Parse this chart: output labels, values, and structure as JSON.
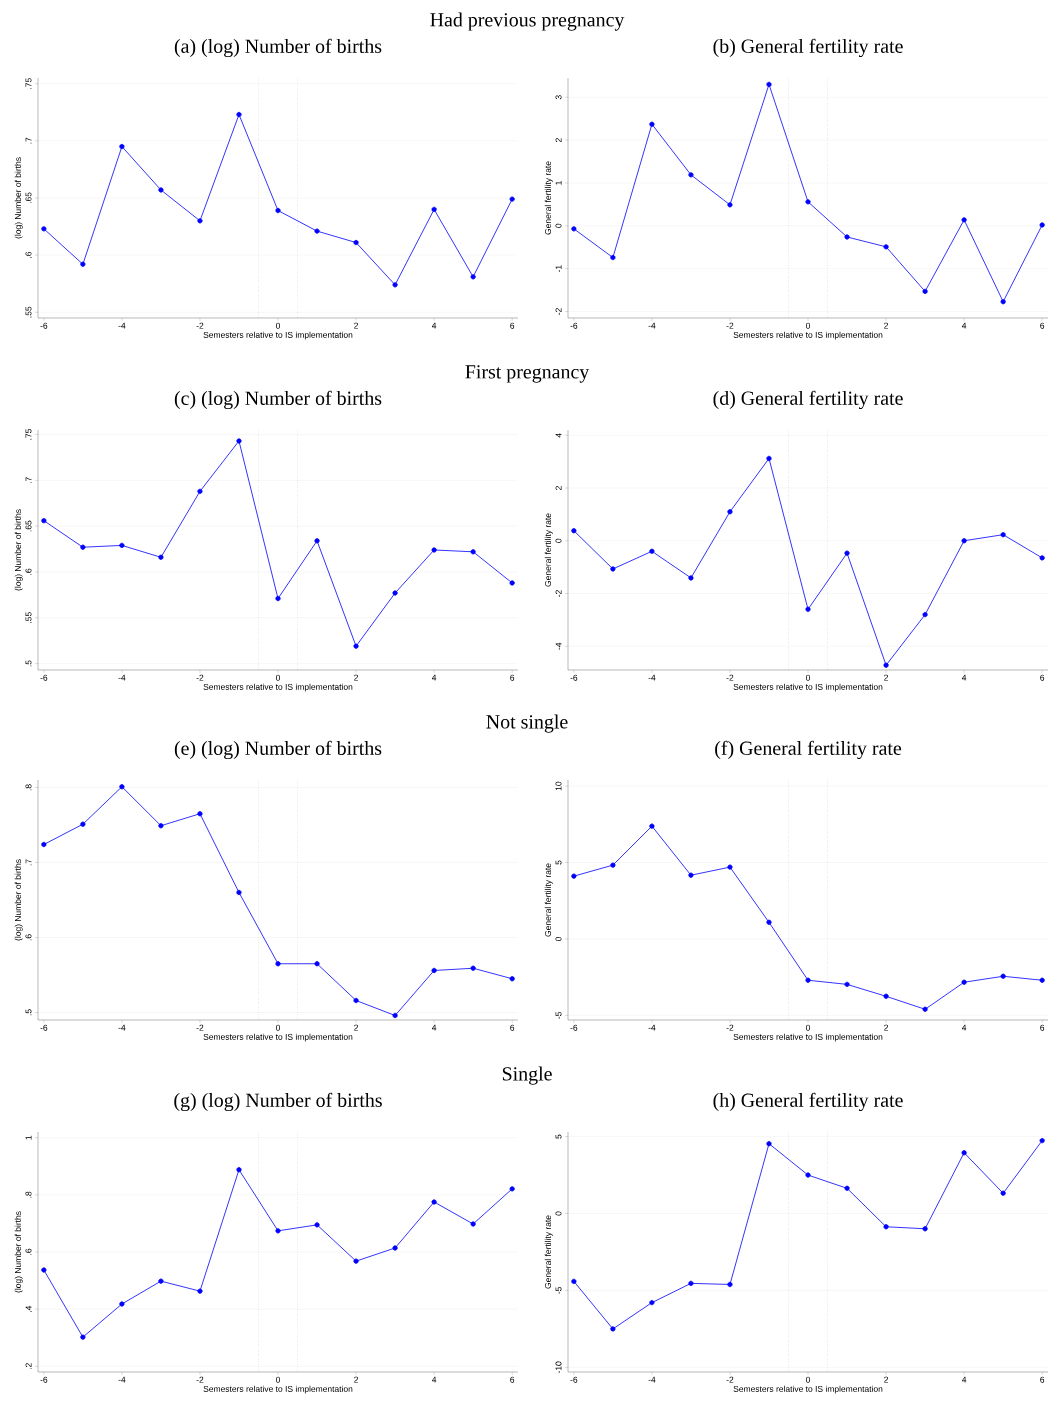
{
  "chart_data": [
    {
      "type": "line",
      "title": "(a)  (log) Number of births",
      "annotations": [
        "Had previous pregnancy"
      ],
      "xlabel": "Semesters relative to IS implementation",
      "ylabel": "(log) Number of births",
      "x": [
        -6,
        -5,
        -4,
        -3,
        -2,
        -1,
        0,
        1,
        2,
        3,
        4,
        5,
        6
      ],
      "color": "#0000ff",
      "marker": "circle",
      "grid": "y",
      "values": [
        0.623,
        0.592,
        0.695,
        0.657,
        0.63,
        0.723,
        0.639,
        0.621,
        0.611,
        0.574,
        0.64,
        0.581,
        0.649
      ],
      "xlim": [
        -6.15,
        6.15
      ],
      "xticks": [
        -6,
        -4,
        -2,
        0,
        2,
        4,
        6
      ],
      "ylim": [
        0.545,
        0.755
      ],
      "yticks": [
        {
          "value": 0.55,
          "label": ".55"
        },
        {
          "value": 0.6,
          "label": ".6"
        },
        {
          "value": 0.65,
          "label": ".65"
        },
        {
          "value": 0.7,
          "label": ".7"
        },
        {
          "value": 0.75,
          "label": ".75"
        }
      ],
      "ref_lines": [
        {
          "axis": "x",
          "value": -0.5,
          "color": "#aaaaaa",
          "line_style": "dotted"
        },
        {
          "axis": "x",
          "value": 0.5,
          "color": "#aaaaaa",
          "line_style": "dotted"
        }
      ]
    },
    {
      "type": "line",
      "title": "(b)  General fertility rate",
      "xlabel": "Semesters relative to IS implementation",
      "ylabel": "General fertility rate",
      "x": [
        -6,
        -5,
        -4,
        -3,
        -2,
        -1,
        0,
        1,
        2,
        3,
        4,
        5,
        6
      ],
      "color": "#0000ff",
      "marker": "circle",
      "grid": "y",
      "values": [
        -0.07,
        -0.74,
        2.37,
        1.19,
        0.49,
        3.3,
        0.56,
        -0.26,
        -0.49,
        -1.53,
        0.14,
        -1.77,
        0.02
      ],
      "xlim": [
        -6.15,
        6.15
      ],
      "xticks": [
        -6,
        -4,
        -2,
        0,
        2,
        4,
        6
      ],
      "ylim": [
        -2.15,
        3.45
      ],
      "yticks": [
        -2,
        -1,
        0,
        1,
        2,
        3
      ],
      "ref_lines": [
        {
          "axis": "x",
          "value": -0.5,
          "color": "#aaaaaa",
          "line_style": "dotted"
        },
        {
          "axis": "x",
          "value": 0.5,
          "color": "#aaaaaa",
          "line_style": "dotted"
        }
      ]
    },
    {
      "type": "line",
      "title": "(c)  (log) Number of births",
      "annotations": [
        "First pregnancy"
      ],
      "xlabel": "Semesters relative to IS implementation",
      "ylabel": "(log) Number of births",
      "x": [
        -6,
        -5,
        -4,
        -3,
        -2,
        -1,
        0,
        1,
        2,
        3,
        4,
        5,
        6
      ],
      "color": "#0000ff",
      "marker": "circle",
      "grid": "y",
      "values": [
        0.656,
        0.627,
        0.629,
        0.616,
        0.688,
        0.743,
        0.571,
        0.634,
        0.519,
        0.577,
        0.624,
        0.622,
        0.588
      ],
      "xlim": [
        -6.15,
        6.15
      ],
      "xticks": [
        -6,
        -4,
        -2,
        0,
        2,
        4,
        6
      ],
      "ylim": [
        0.493,
        0.755
      ],
      "yticks": [
        {
          "value": 0.5,
          "label": ".5"
        },
        {
          "value": 0.55,
          "label": ".55"
        },
        {
          "value": 0.6,
          "label": ".6"
        },
        {
          "value": 0.65,
          "label": ".65"
        },
        {
          "value": 0.7,
          "label": ".7"
        },
        {
          "value": 0.75,
          "label": ".75"
        }
      ],
      "ref_lines": [
        {
          "axis": "x",
          "value": -0.5,
          "color": "#aaaaaa",
          "line_style": "dotted"
        },
        {
          "axis": "x",
          "value": 0.5,
          "color": "#aaaaaa",
          "line_style": "dotted"
        }
      ]
    },
    {
      "type": "line",
      "title": "(d)  General fertility rate",
      "xlabel": "Semesters relative to IS implementation",
      "ylabel": "General fertility rate",
      "x": [
        -6,
        -5,
        -4,
        -3,
        -2,
        -1,
        0,
        1,
        2,
        3,
        4,
        5,
        6
      ],
      "color": "#0000ff",
      "marker": "circle",
      "grid": "y",
      "values": [
        0.38,
        -1.07,
        -0.4,
        -1.41,
        1.1,
        3.12,
        -2.6,
        -0.47,
        -4.72,
        -2.8,
        0,
        0.23,
        -0.65
      ],
      "xlim": [
        -6.15,
        6.15
      ],
      "xticks": [
        -6,
        -4,
        -2,
        0,
        2,
        4,
        6
      ],
      "ylim": [
        -4.9,
        4.2
      ],
      "yticks": [
        -4,
        -2,
        0,
        2,
        4
      ],
      "ref_lines": [
        {
          "axis": "x",
          "value": -0.5,
          "color": "#aaaaaa",
          "line_style": "dotted"
        },
        {
          "axis": "x",
          "value": 0.5,
          "color": "#aaaaaa",
          "line_style": "dotted"
        }
      ]
    },
    {
      "type": "line",
      "title": "(e)  (log) Number of births",
      "annotations": [
        "Not single"
      ],
      "xlabel": "Semesters relative to IS implementation",
      "ylabel": "(log) Number of births",
      "x": [
        -6,
        -5,
        -4,
        -3,
        -2,
        -1,
        0,
        1,
        2,
        3,
        4,
        5,
        6
      ],
      "color": "#0000ff",
      "marker": "circle",
      "grid": "y",
      "values": [
        0.724,
        0.751,
        0.801,
        0.749,
        0.765,
        0.66,
        0.565,
        0.565,
        0.516,
        0.496,
        0.556,
        0.559,
        0.545
      ],
      "xlim": [
        -6.15,
        6.15
      ],
      "xticks": [
        -6,
        -4,
        -2,
        0,
        2,
        4,
        6
      ],
      "ylim": [
        0.49,
        0.81
      ],
      "yticks": [
        {
          "value": 0.5,
          "label": ".5"
        },
        {
          "value": 0.6,
          "label": ".6"
        },
        {
          "value": 0.7,
          "label": ".7"
        },
        {
          "value": 0.8,
          "label": ".8"
        }
      ],
      "ref_lines": [
        {
          "axis": "x",
          "value": -0.5,
          "color": "#aaaaaa",
          "line_style": "dotted"
        },
        {
          "axis": "x",
          "value": 0.5,
          "color": "#aaaaaa",
          "line_style": "dotted"
        }
      ]
    },
    {
      "type": "line",
      "title": "(f)  General fertility rate",
      "xlabel": "Semesters relative to IS implementation",
      "ylabel": "General fertility rate",
      "x": [
        -6,
        -5,
        -4,
        -3,
        -2,
        -1,
        0,
        1,
        2,
        3,
        4,
        5,
        6
      ],
      "color": "#0000ff",
      "marker": "circle",
      "grid": "y",
      "values": [
        4.11,
        4.83,
        7.38,
        4.17,
        4.7,
        1.09,
        -2.7,
        -2.97,
        -3.75,
        -4.6,
        -2.83,
        -2.44,
        -2.7
      ],
      "xlim": [
        -6.15,
        6.15
      ],
      "xticks": [
        -6,
        -4,
        -2,
        0,
        2,
        4,
        6
      ],
      "ylim": [
        -5.3,
        10.4
      ],
      "yticks": [
        -5,
        0,
        5,
        10
      ],
      "ref_lines": [
        {
          "axis": "x",
          "value": -0.5,
          "color": "#aaaaaa",
          "line_style": "dotted"
        },
        {
          "axis": "x",
          "value": 0.5,
          "color": "#aaaaaa",
          "line_style": "dotted"
        }
      ]
    },
    {
      "type": "line",
      "title": "(g)  (log) Number of births",
      "annotations": [
        "Single"
      ],
      "xlabel": "Semesters relative to IS implementation",
      "ylabel": "(log) Number of births",
      "x": [
        -6,
        -5,
        -4,
        -3,
        -2,
        -1,
        0,
        1,
        2,
        3,
        4,
        5,
        6
      ],
      "color": "#0000ff",
      "marker": "circle",
      "grid": "y",
      "values": [
        0.537,
        0.302,
        0.418,
        0.498,
        0.463,
        0.888,
        0.674,
        0.695,
        0.568,
        0.614,
        0.775,
        0.698,
        0.821
      ],
      "xlim": [
        -6.15,
        6.15
      ],
      "xticks": [
        -6,
        -4,
        -2,
        0,
        2,
        4,
        6
      ],
      "ylim": [
        0.18,
        1.02
      ],
      "yticks": [
        {
          "value": 0.2,
          "label": ".2"
        },
        {
          "value": 0.4,
          "label": ".4"
        },
        {
          "value": 0.6,
          "label": ".6"
        },
        {
          "value": 0.8,
          "label": ".8"
        },
        {
          "value": 1,
          "label": "1"
        }
      ],
      "ref_lines": [
        {
          "axis": "x",
          "value": -0.5,
          "color": "#aaaaaa",
          "line_style": "dotted"
        },
        {
          "axis": "x",
          "value": 0.5,
          "color": "#aaaaaa",
          "line_style": "dotted"
        }
      ]
    },
    {
      "type": "line",
      "title": "(h)  General fertility rate",
      "xlabel": "Semesters relative to IS implementation",
      "ylabel": "General fertility rate",
      "x": [
        -6,
        -5,
        -4,
        -3,
        -2,
        -1,
        0,
        1,
        2,
        3,
        4,
        5,
        6
      ],
      "color": "#0000ff",
      "marker": "circle",
      "grid": "y",
      "values": [
        -4.41,
        -7.5,
        -5.79,
        -4.54,
        -4.61,
        4.54,
        2.5,
        1.64,
        -0.86,
        -0.99,
        3.95,
        1.32,
        4.74
      ],
      "xlim": [
        -6.15,
        6.15
      ],
      "xticks": [
        -6,
        -4,
        -2,
        0,
        2,
        4,
        6
      ],
      "ylim": [
        -10.3,
        5.3
      ],
      "yticks": [
        -10,
        -5,
        0,
        5
      ],
      "ref_lines": [
        {
          "axis": "x",
          "value": -0.5,
          "color": "#aaaaaa",
          "line_style": "dotted"
        },
        {
          "axis": "x",
          "value": 0.5,
          "color": "#aaaaaa",
          "line_style": "dotted"
        }
      ]
    }
  ]
}
